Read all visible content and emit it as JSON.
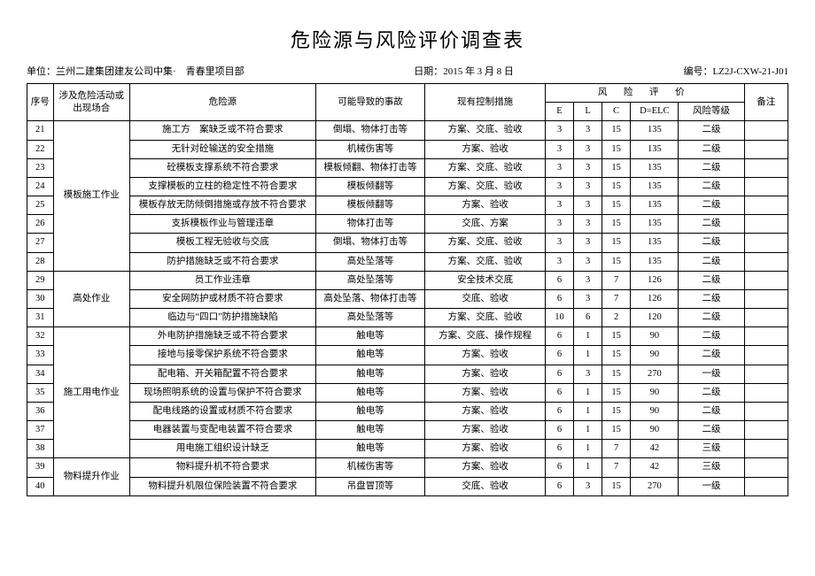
{
  "title": "危险源与风险评价调查表",
  "meta": {
    "unit_label": "单位：",
    "unit_value": "兰州二建集团建友公司中集·　青春里项目部",
    "date_label": "日期：",
    "date_value": "2015 年 3 月 8 日",
    "code_label": "编号：",
    "code_value": "LZ2J-CXW-21-J01"
  },
  "header": {
    "seq": "序号",
    "scene": "涉及危险活动或出现场合",
    "source": "危险源",
    "accident": "可能导致的事故",
    "control": "现有控制措施",
    "risk_group": "风 险 评 价",
    "E": "E",
    "L": "L",
    "C": "C",
    "D": "D=ELC",
    "grade": "风险等级",
    "note": "备注"
  },
  "groups": [
    {
      "scene": "模板施工作业",
      "rows": [
        {
          "seq": "21",
          "source": "施工方　案缺乏或不符合要求",
          "accident": "倒塌、物体打击等",
          "control": "方案、交底、验收",
          "E": "3",
          "L": "3",
          "C": "15",
          "D": "135",
          "grade": "二级"
        },
        {
          "seq": "22",
          "source": "无针对砼输送的安全措施",
          "accident": "机械伤害等",
          "control": "方案、验收",
          "E": "3",
          "L": "3",
          "C": "15",
          "D": "135",
          "grade": "二级"
        },
        {
          "seq": "23",
          "source": "砼模板支撑系统不符合要求",
          "accident": "模板倾翻、物体打击等",
          "control": "方案、交底、验收",
          "E": "3",
          "L": "3",
          "C": "15",
          "D": "135",
          "grade": "二级"
        },
        {
          "seq": "24",
          "source": "支撑模板的立柱的稳定性不符合要求",
          "accident": "模板倾翻等",
          "control": "方案、交底、验收",
          "E": "3",
          "L": "3",
          "C": "15",
          "D": "135",
          "grade": "二级"
        },
        {
          "seq": "25",
          "source": "模板存放无防倾倒措施或存放不符合要求",
          "accident": "模板倾翻等",
          "control": "方案、验收",
          "E": "3",
          "L": "3",
          "C": "15",
          "D": "135",
          "grade": "二级"
        },
        {
          "seq": "26",
          "source": "支拆模板作业与管理违章",
          "accident": "物体打击等",
          "control": "交底、方案",
          "E": "3",
          "L": "3",
          "C": "15",
          "D": "135",
          "grade": "二级"
        },
        {
          "seq": "27",
          "source": "模板工程无验收与交底",
          "accident": "倒塌、物体打击等",
          "control": "方案、交底、验收",
          "E": "3",
          "L": "3",
          "C": "15",
          "D": "135",
          "grade": "二级"
        },
        {
          "seq": "28",
          "source": "防护措施缺乏或不符合要求",
          "accident": "高处坠落等",
          "control": "方案、交底、验收",
          "E": "3",
          "L": "3",
          "C": "15",
          "D": "135",
          "grade": "二级"
        }
      ]
    },
    {
      "scene": "高处作业",
      "rows": [
        {
          "seq": "29",
          "source": "员工作业违章",
          "accident": "高处坠落等",
          "control": "安全技术交底",
          "E": "6",
          "L": "3",
          "C": "7",
          "D": "126",
          "grade": "二级"
        },
        {
          "seq": "30",
          "source": "安全网防护或材质不符合要求",
          "accident": "高处坠落、物体打击等",
          "control": "交底、验收",
          "E": "6",
          "L": "3",
          "C": "7",
          "D": "126",
          "grade": "二级"
        },
        {
          "seq": "31",
          "source": "临边与“四口”防护措施缺陷",
          "accident": "高处坠落等",
          "control": "方案、交底、验收",
          "E": "10",
          "L": "6",
          "C": "2",
          "D": "120",
          "grade": "二级"
        }
      ]
    },
    {
      "scene": "施工用电作业",
      "rows": [
        {
          "seq": "32",
          "source": "外电防护措施缺乏或不符合要求",
          "accident": "触电等",
          "control": "方案、交底、操作规程",
          "E": "6",
          "L": "1",
          "C": "15",
          "D": "90",
          "grade": "二级"
        },
        {
          "seq": "33",
          "source": "接地与接零保护系统不符合要求",
          "accident": "触电等",
          "control": "方案、验收",
          "E": "6",
          "L": "1",
          "C": "15",
          "D": "90",
          "grade": "二级"
        },
        {
          "seq": "34",
          "source": "配电箱、开关箱配置不符合要求",
          "accident": "触电等",
          "control": "方案、验收",
          "E": "6",
          "L": "3",
          "C": "15",
          "D": "270",
          "grade": "一级"
        },
        {
          "seq": "35",
          "source": "现场照明系统的设置与保护不符合要求",
          "accident": "触电等",
          "control": "方案、验收",
          "E": "6",
          "L": "1",
          "C": "15",
          "D": "90",
          "grade": "二级"
        },
        {
          "seq": "36",
          "source": "配电线路的设置或材质不符合要求",
          "accident": "触电等",
          "control": "方案、验收",
          "E": "6",
          "L": "1",
          "C": "15",
          "D": "90",
          "grade": "二级"
        },
        {
          "seq": "37",
          "source": "电器装置与变配电装置不符合要求",
          "accident": "触电等",
          "control": "方案、验收",
          "E": "6",
          "L": "1",
          "C": "15",
          "D": "90",
          "grade": "二级"
        },
        {
          "seq": "38",
          "source": "用电施工组织设计缺乏",
          "accident": "触电等",
          "control": "方案、验收",
          "E": "6",
          "L": "1",
          "C": "7",
          "D": "42",
          "grade": "三级"
        }
      ]
    },
    {
      "scene": "物料提升作业",
      "rows": [
        {
          "seq": "39",
          "source": "物料提升机不符合要求",
          "accident": "机械伤害等",
          "control": "方案、验收",
          "E": "6",
          "L": "1",
          "C": "7",
          "D": "42",
          "grade": "三级"
        },
        {
          "seq": "40",
          "source": "物料提升机限位保险装置不符合要求",
          "accident": "吊盘冒顶等",
          "control": "交底、验收",
          "E": "6",
          "L": "3",
          "C": "15",
          "D": "270",
          "grade": "一级"
        }
      ]
    }
  ]
}
